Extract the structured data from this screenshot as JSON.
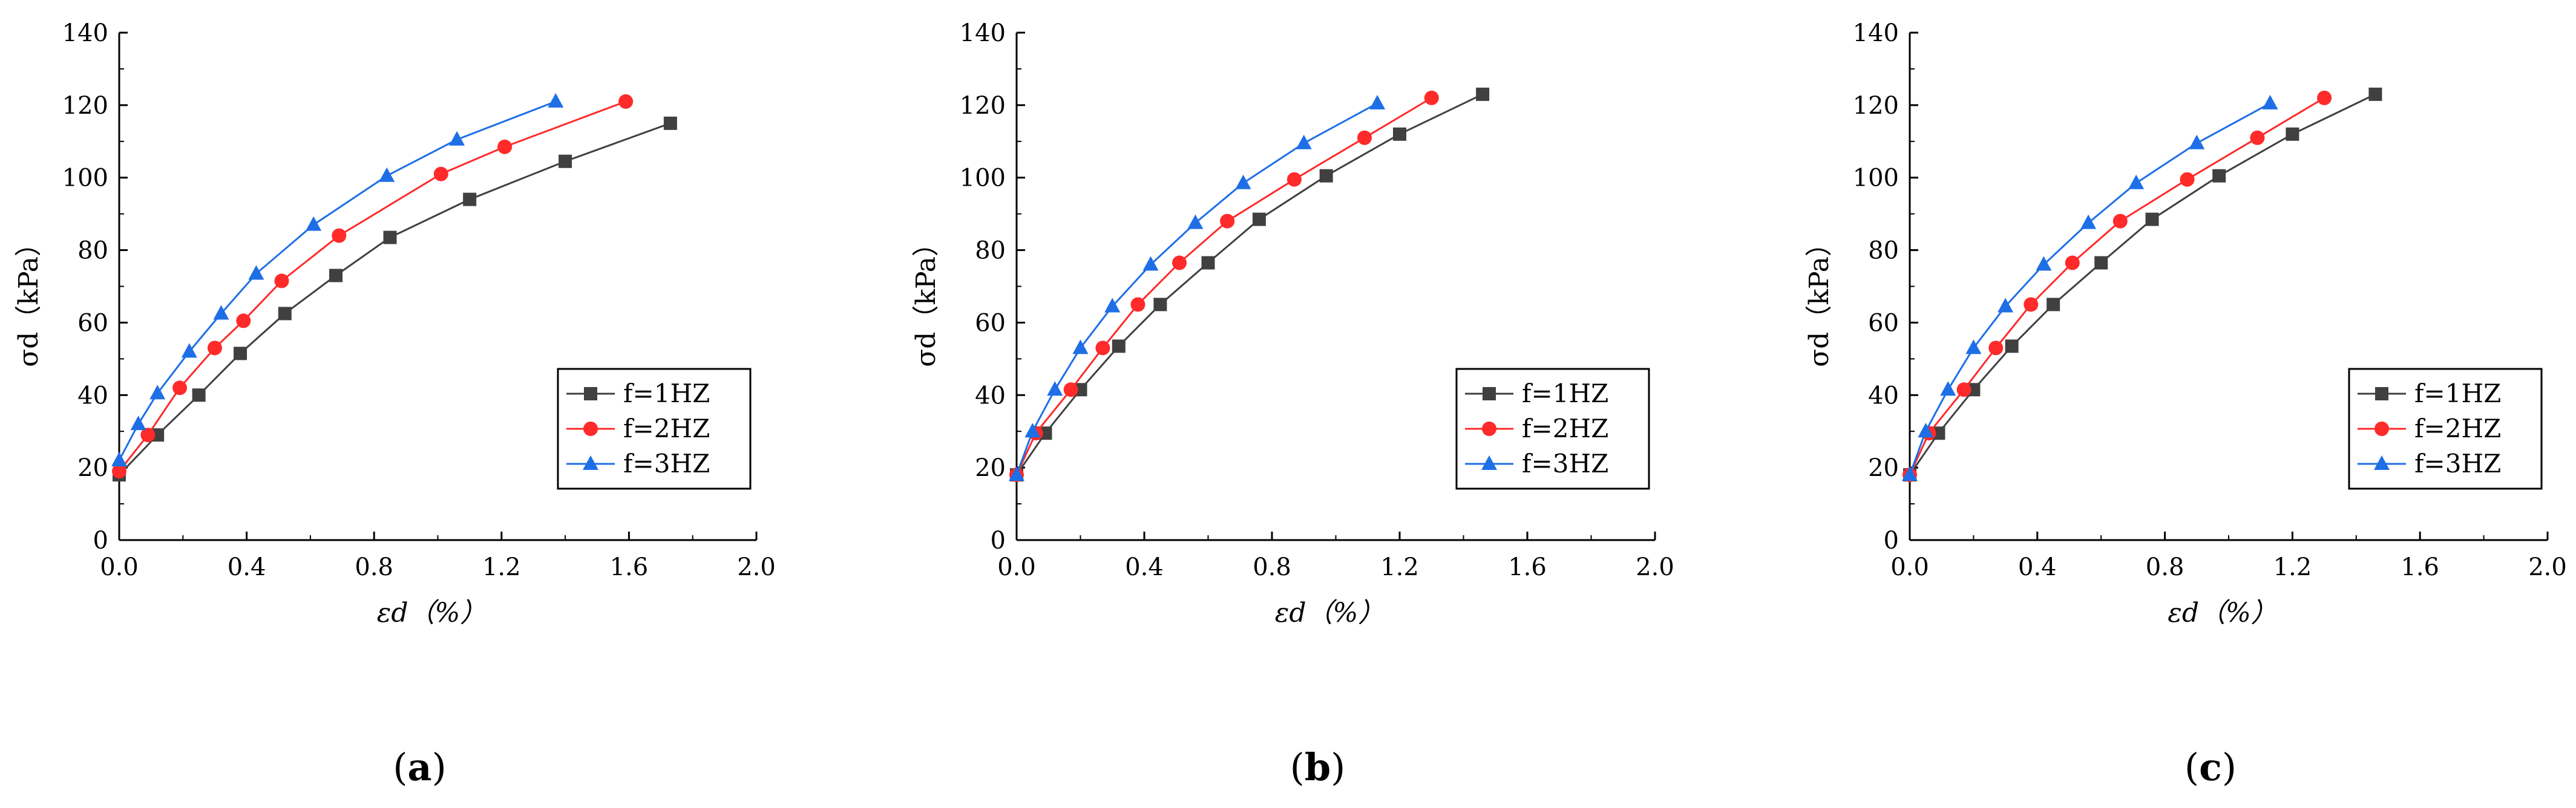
{
  "chart_data": [
    {
      "type": "line",
      "panel_label": "a",
      "xlabel": "εd（%）",
      "ylabel": "σd（kPa）",
      "xlim": [
        0,
        2.0
      ],
      "ylim": [
        0,
        140
      ],
      "xticks": [
        "0.0",
        "0.4",
        "0.8",
        "1.2",
        "1.6",
        "2.0"
      ],
      "yticks": [
        "0",
        "20",
        "40",
        "60",
        "80",
        "100",
        "120",
        "140"
      ],
      "legend_position": "lower-right",
      "series": [
        {
          "name": "f=1HZ",
          "color": "#404040",
          "marker": "square",
          "x": [
            0.0,
            0.12,
            0.25,
            0.38,
            0.52,
            0.68,
            0.85,
            1.1,
            1.4,
            1.73
          ],
          "y": [
            18,
            29,
            40,
            51.5,
            62.5,
            73,
            83.5,
            94,
            104.5,
            115
          ]
        },
        {
          "name": "f=2HZ",
          "color": "#ff2a2a",
          "marker": "circle",
          "x": [
            0.0,
            0.09,
            0.19,
            0.3,
            0.39,
            0.51,
            0.69,
            1.01,
            1.21,
            1.59
          ],
          "y": [
            19,
            29,
            42,
            53,
            60.5,
            71.5,
            84,
            101,
            108.5,
            121
          ]
        },
        {
          "name": "f=3HZ",
          "color": "#1e6fe6",
          "marker": "triangle",
          "x": [
            0.0,
            0.06,
            0.12,
            0.22,
            0.32,
            0.43,
            0.61,
            0.84,
            1.06,
            1.37
          ],
          "y": [
            22,
            32,
            40.5,
            52,
            62.5,
            73.5,
            87,
            100.5,
            110.5,
            121
          ]
        }
      ]
    },
    {
      "type": "line",
      "panel_label": "b",
      "xlabel": "εd（%）",
      "ylabel": "σd（kPa）",
      "xlim": [
        0,
        2.0
      ],
      "ylim": [
        0,
        140
      ],
      "xticks": [
        "0.0",
        "0.4",
        "0.8",
        "1.2",
        "1.6",
        "2.0"
      ],
      "yticks": [
        "0",
        "20",
        "40",
        "60",
        "80",
        "100",
        "120",
        "140"
      ],
      "legend_position": "lower-right",
      "series": [
        {
          "name": "f=1HZ",
          "color": "#404040",
          "marker": "square",
          "x": [
            0.0,
            0.09,
            0.2,
            0.32,
            0.45,
            0.6,
            0.76,
            0.97,
            1.2,
            1.46
          ],
          "y": [
            18,
            29.5,
            41.5,
            53.5,
            65,
            76.5,
            88.5,
            100.5,
            112,
            123
          ]
        },
        {
          "name": "f=2HZ",
          "color": "#ff2a2a",
          "marker": "circle",
          "x": [
            0.0,
            0.06,
            0.17,
            0.27,
            0.38,
            0.51,
            0.66,
            0.87,
            1.09,
            1.3
          ],
          "y": [
            18,
            29.5,
            41.5,
            53,
            65,
            76.5,
            88,
            99.5,
            111,
            122
          ]
        },
        {
          "name": "f=3HZ",
          "color": "#1e6fe6",
          "marker": "triangle",
          "x": [
            0.0,
            0.05,
            0.12,
            0.2,
            0.3,
            0.42,
            0.56,
            0.71,
            0.9,
            1.13
          ],
          "y": [
            18,
            30,
            41.5,
            53,
            64.5,
            76,
            87.5,
            98.5,
            109.5,
            120.5
          ]
        }
      ]
    },
    {
      "type": "line",
      "panel_label": "c",
      "xlabel": "εd（%）",
      "ylabel": "σd（kPa）",
      "xlim": [
        0,
        2.0
      ],
      "ylim": [
        0,
        140
      ],
      "xticks": [
        "0.0",
        "0.4",
        "0.8",
        "1.2",
        "1.6",
        "2.0"
      ],
      "yticks": [
        "0",
        "20",
        "40",
        "60",
        "80",
        "100",
        "120",
        "140"
      ],
      "legend_position": "lower-right",
      "series": [
        {
          "name": "f=1HZ",
          "color": "#404040",
          "marker": "square",
          "x": [
            0.0,
            0.09,
            0.2,
            0.32,
            0.45,
            0.6,
            0.76,
            0.97,
            1.2,
            1.46
          ],
          "y": [
            18,
            29.5,
            41.5,
            53.5,
            65,
            76.5,
            88.5,
            100.5,
            112,
            123
          ]
        },
        {
          "name": "f=2HZ",
          "color": "#ff2a2a",
          "marker": "circle",
          "x": [
            0.0,
            0.06,
            0.17,
            0.27,
            0.38,
            0.51,
            0.66,
            0.87,
            1.09,
            1.3
          ],
          "y": [
            18,
            29.5,
            41.5,
            53,
            65,
            76.5,
            88,
            99.5,
            111,
            122
          ]
        },
        {
          "name": "f=3HZ",
          "color": "#1e6fe6",
          "marker": "triangle",
          "x": [
            0.0,
            0.05,
            0.12,
            0.2,
            0.3,
            0.42,
            0.56,
            0.71,
            0.9,
            1.13
          ],
          "y": [
            18,
            30,
            41.5,
            53,
            64.5,
            76,
            87.5,
            98.5,
            109.5,
            120.5
          ]
        }
      ]
    }
  ]
}
